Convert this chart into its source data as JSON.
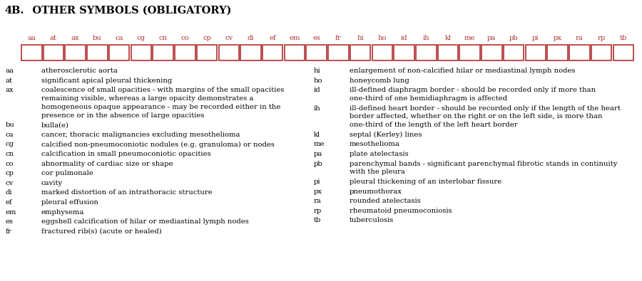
{
  "title_prefix": "4B.",
  "title_rest": "   OTHER SYMBOLS (OBLIGATORY)",
  "title_color": "#000000",
  "title_fontsize": 10.5,
  "box_labels": [
    "aa",
    "at",
    "ax",
    "bu",
    "ca",
    "cg",
    "cn",
    "co",
    "cp",
    "cv",
    "di",
    "ef",
    "em",
    "es",
    "fr",
    "hi",
    "ho",
    "id",
    "ih",
    "kl",
    "me",
    "pa",
    "pb",
    "pi",
    "px",
    "ra",
    "rp",
    "tb"
  ],
  "box_color": "#b03030",
  "box_fill": "#ffffff",
  "label_color": "#b03030",
  "left_entries": [
    [
      "aa",
      "atherosclerotic aorta"
    ],
    [
      "at",
      "significant apical pleural thickening"
    ],
    [
      "ax",
      "coalescence of small opacities - with margins of the small opacities\nremaining visible, whereas a large opacity demonstrates a\nhomogeneous opaque appearance - may be recorded either in the\npresence or in the absence of large opacities"
    ],
    [
      "bu",
      "bulla(e)"
    ],
    [
      "ca",
      "cancer, thoracic malignancies excluding mesothelioma"
    ],
    [
      "cg",
      "calcified non-pneumoconiotic nodules (e.g. granuloma) or nodes"
    ],
    [
      "cn",
      "calcification in small pneumoconiotic opacities"
    ],
    [
      "co",
      "abnormality of cardiac size or shape"
    ],
    [
      "cp",
      "cor pulmonale"
    ],
    [
      "cv",
      "cavity"
    ],
    [
      "di",
      "marked distortion of an intrathoracic structure"
    ],
    [
      "ef",
      "pleural effusion"
    ],
    [
      "em",
      "emphysema"
    ],
    [
      "es",
      "eggshell calcification of hilar or mediastinal lymph nodes"
    ],
    [
      "fr",
      "fractured rib(s) (acute or healed)"
    ]
  ],
  "right_entries": [
    [
      "hi",
      "enlargement of non-calcified hilar or mediastinal lymph nodes"
    ],
    [
      "ho",
      "honeycomb lung"
    ],
    [
      "id",
      "ill-defined diaphragm border - should be recorded only if more than\none-third of one hemidiaphragm is affected"
    ],
    [
      "ih",
      "ill-defined heart border - should be recorded only if the length of the heart\nborder affected, whether on the right or on the left side, is more than\none-third of the length of the left heart border"
    ],
    [
      "kl",
      "septal (Kerley) lines"
    ],
    [
      "me",
      "mesothelioma"
    ],
    [
      "pa",
      "plate atelectasis"
    ],
    [
      "pb",
      "parenchymal bands - significant parenchymal fibrotic stands in continuity\nwith the pleura"
    ],
    [
      "pi",
      "pleural thickening of an interlobar fissure"
    ],
    [
      "px",
      "pneumothorax"
    ],
    [
      "ra",
      "rounded atelectasis"
    ],
    [
      "rp",
      "rheumatoid pneumoconiosis"
    ],
    [
      "tb",
      "tuberculosis"
    ]
  ],
  "bg_color": "#ffffff",
  "text_color": "#000000",
  "text_fontsize": 7.2,
  "label_fontsize": 7.2,
  "code_fontsize": 7.2,
  "fig_width": 9.0,
  "fig_height": 3.95,
  "dpi": 100
}
